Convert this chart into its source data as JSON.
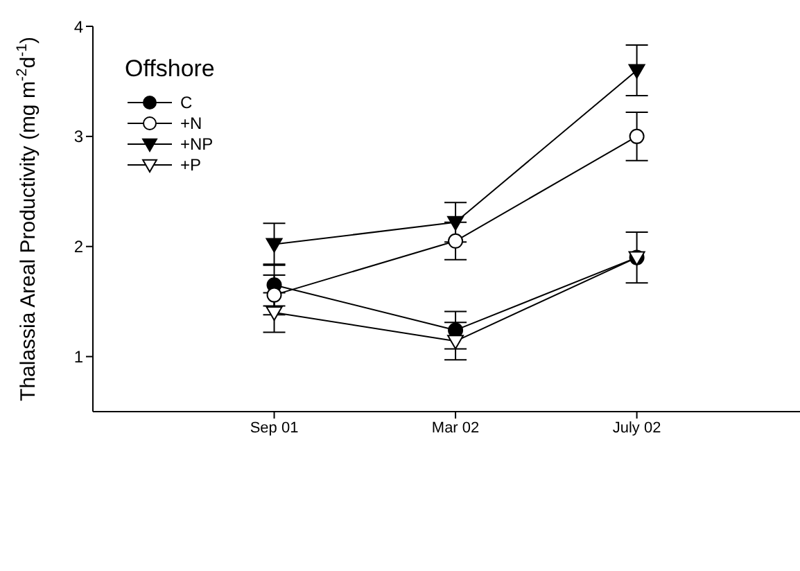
{
  "chart_data": {
    "type": "line",
    "ylabel": "Thalassia Areal Productivity (mg m$^{-2}$d$^{-1}$)",
    "legend_title": "Offshore",
    "legend": "top left",
    "categories": [
      "Sep 01",
      "Mar 02",
      "July 02"
    ],
    "ylim": [
      0.5,
      4
    ],
    "yticks": [
      1,
      2,
      3,
      4
    ],
    "grid": false,
    "line_style": "solid",
    "series": [
      {
        "name": "C",
        "color": "#000000",
        "marker": "circle",
        "values": [
          1.65,
          1.24,
          1.9
        ],
        "errors": [
          0.19,
          0.17,
          0.23
        ]
      },
      {
        "name": "+N",
        "color": "#000000",
        "marker": "circle-open",
        "values": [
          1.56,
          2.05,
          3.0
        ],
        "errors": [
          0.18,
          0.17,
          0.22
        ]
      },
      {
        "name": "+NP",
        "color": "#000000",
        "marker": "triangle",
        "values": [
          2.02,
          2.22,
          3.6
        ],
        "errors": [
          0.19,
          0.18,
          0.23
        ]
      },
      {
        "name": "+P",
        "color": "#000000",
        "marker": "triangle-open",
        "values": [
          1.4,
          1.14,
          1.9
        ],
        "errors": [
          0.18,
          0.17,
          null
        ]
      }
    ]
  }
}
